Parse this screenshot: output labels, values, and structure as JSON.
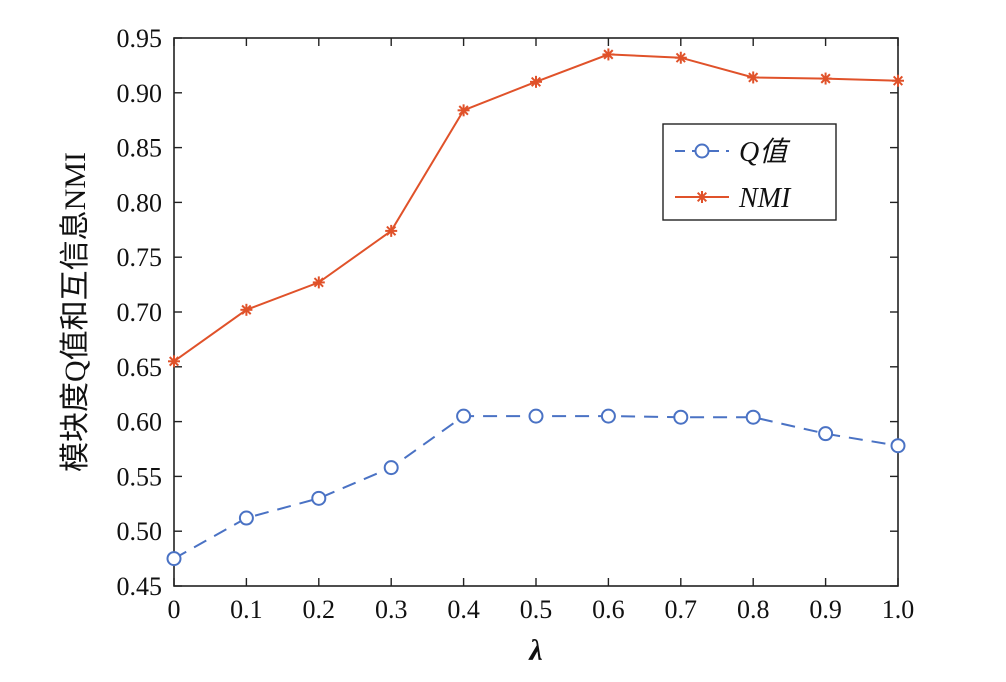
{
  "chart_data": {
    "type": "line",
    "xlabel": "λ",
    "ylabel": "模块度Q值和互信息NMI",
    "x": [
      0,
      0.1,
      0.2,
      0.3,
      0.4,
      0.5,
      0.6,
      0.7,
      0.8,
      0.9,
      1.0
    ],
    "x_tick_labels": [
      "0",
      "0.1",
      "0.2",
      "0.3",
      "0.4",
      "0.5",
      "0.6",
      "0.7",
      "0.8",
      "0.9",
      "1.0"
    ],
    "y_tick_labels": [
      "0.45",
      "0.50",
      "0.55",
      "0.60",
      "0.65",
      "0.70",
      "0.75",
      "0.80",
      "0.85",
      "0.90",
      "0.95"
    ],
    "y_ticks": [
      0.45,
      0.5,
      0.55,
      0.6,
      0.65,
      0.7,
      0.75,
      0.8,
      0.85,
      0.9,
      0.95
    ],
    "xlim": [
      0,
      1.0
    ],
    "ylim": [
      0.45,
      0.95
    ],
    "grid": false,
    "legend_position": "top-right",
    "series": [
      {
        "name": "Q值",
        "values": [
          0.475,
          0.512,
          0.53,
          0.558,
          0.605,
          0.605,
          0.605,
          0.604,
          0.604,
          0.589,
          0.578
        ],
        "color": "#4a72c4",
        "line_style": "dashed",
        "marker": "circle"
      },
      {
        "name": "NMI",
        "values": [
          0.655,
          0.702,
          0.727,
          0.774,
          0.884,
          0.91,
          0.935,
          0.932,
          0.914,
          0.913,
          0.911
        ],
        "color": "#e0522a",
        "line_style": "solid",
        "marker": "star"
      }
    ]
  }
}
